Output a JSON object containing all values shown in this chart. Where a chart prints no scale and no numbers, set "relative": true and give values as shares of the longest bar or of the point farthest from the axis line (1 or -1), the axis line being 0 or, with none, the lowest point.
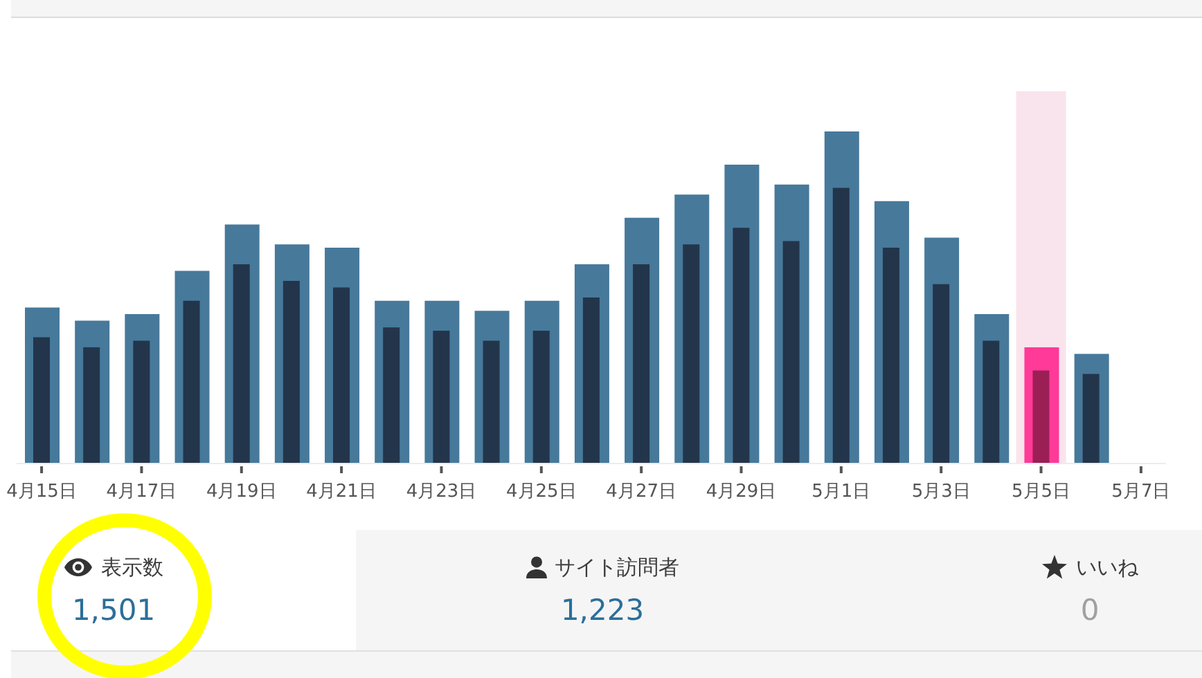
{
  "chart_data": [
    {
      "type": "bar",
      "categories": [
        "4月15日",
        null,
        "4月17日",
        null,
        "4月19日",
        null,
        "4月21日",
        null,
        "4月23日",
        null,
        "4月25日",
        null,
        "4月27日",
        null,
        "4月29日",
        null,
        "5月1日",
        null,
        "5月3日",
        null,
        "5月5日",
        null,
        "5月7日"
      ],
      "relative": true,
      "series": [
        {
          "values": [
            0.47,
            0.43,
            0.45,
            0.58,
            0.72,
            0.66,
            0.65,
            0.49,
            0.49,
            0.46,
            0.49,
            0.6,
            0.74,
            0.81,
            0.9,
            0.84,
            1,
            0.79,
            0.68,
            0.45,
            0.35,
            0.33,
            null
          ],
          "colors": [
            "#47799b",
            "#47799b",
            "#47799b",
            "#47799b",
            "#47799b",
            "#47799b",
            "#47799b",
            "#47799b",
            "#47799b",
            "#47799b",
            "#47799b",
            "#47799b",
            "#47799b",
            "#47799b",
            "#47799b",
            "#47799b",
            "#47799b",
            "#47799b",
            "#47799b",
            "#47799b",
            "#ff3a98",
            "#47799b",
            "#47799b"
          ]
        },
        {
          "values": [
            0.38,
            0.35,
            0.37,
            0.49,
            0.6,
            0.55,
            0.53,
            0.41,
            0.4,
            0.37,
            0.4,
            0.5,
            0.6,
            0.66,
            0.71,
            0.67,
            0.83,
            0.65,
            0.54,
            0.37,
            0.28,
            0.27,
            null
          ],
          "colors": [
            "#23354b",
            "#23354b",
            "#23354b",
            "#23354b",
            "#23354b",
            "#23354b",
            "#23354b",
            "#23354b",
            "#23354b",
            "#23354b",
            "#23354b",
            "#23354b",
            "#23354b",
            "#23354b",
            "#23354b",
            "#23354b",
            "#23354b",
            "#23354b",
            "#23354b",
            "#23354b",
            "#9b1f55",
            "#23354b",
            "#23354b"
          ]
        }
      ],
      "bands": [
        {
          "axis": "x",
          "from": "5月5日",
          "to": "5月5日",
          "color": "#f9e4ed"
        }
      ]
    },
    {
      "type": "other",
      "categories": [
        "表示数",
        "サイト訪問者",
        "いいね"
      ],
      "value_labels": [
        "1,501",
        "1,223",
        "0"
      ]
    }
  ]
}
